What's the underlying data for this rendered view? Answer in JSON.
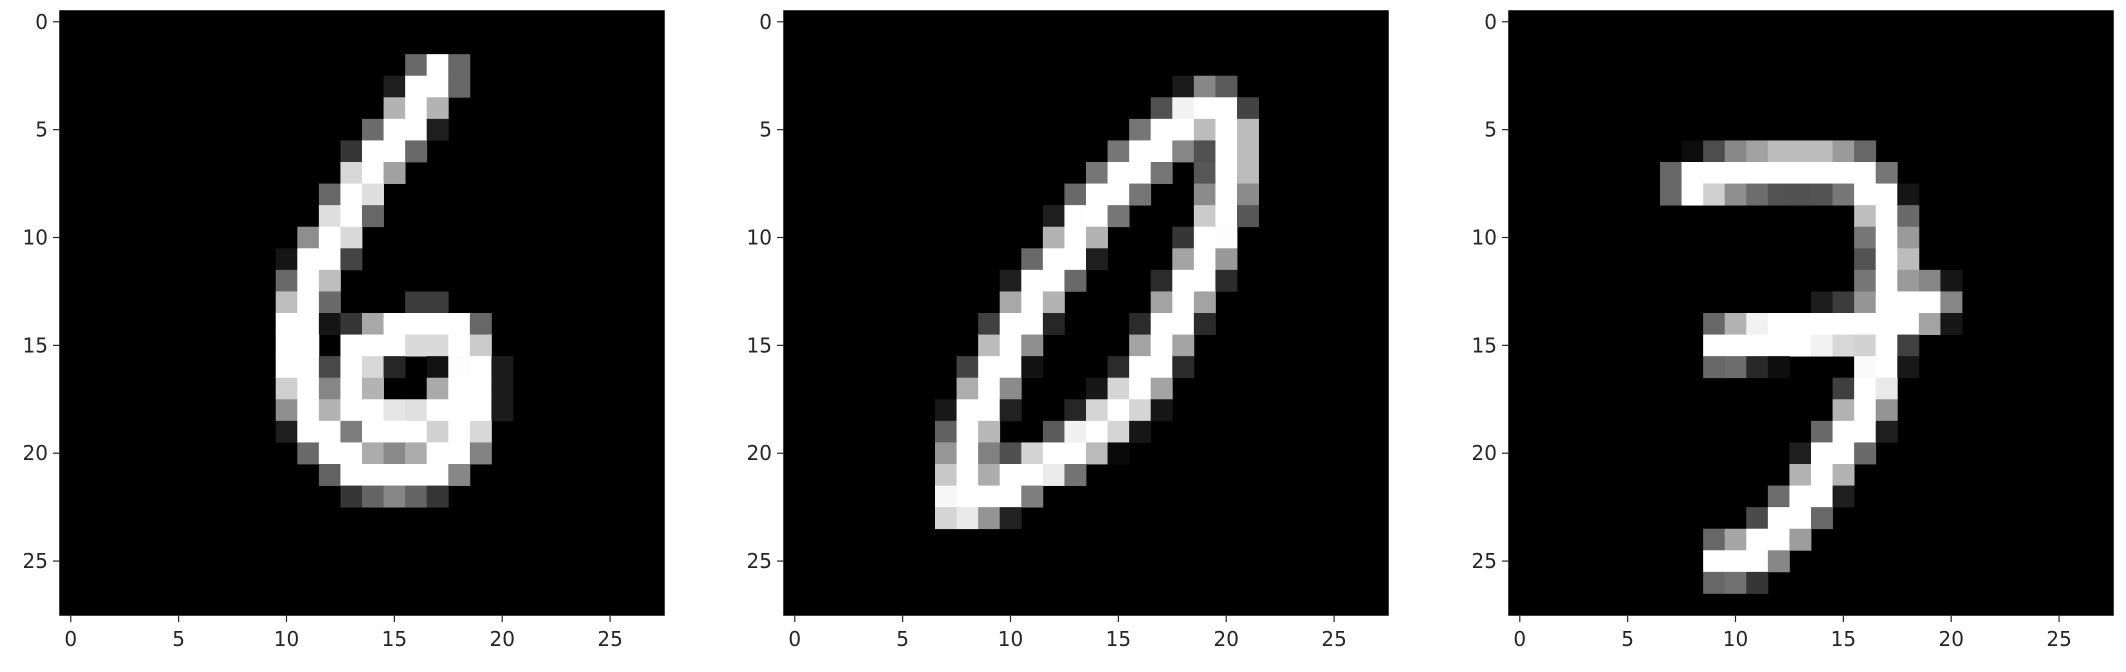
{
  "chart_data": [
    {
      "type": "heatmap",
      "title": "",
      "xlabel": "",
      "ylabel": "",
      "xlim": [
        -0.5,
        27.5
      ],
      "ylim": [
        27.5,
        -0.5
      ],
      "x_ticks": [
        0,
        5,
        10,
        15,
        20,
        25
      ],
      "y_ticks": [
        0,
        5,
        10,
        15,
        20,
        25
      ],
      "colormap": "gray",
      "grid": false,
      "strokes": [
        [
          [
            17,
            2.5
          ],
          [
            16,
            4
          ],
          [
            15,
            5.5
          ],
          [
            13.5,
            7.5
          ],
          [
            12.5,
            9.5
          ],
          [
            11.5,
            11
          ],
          [
            11,
            12.5
          ],
          [
            10.5,
            14
          ],
          [
            10.5,
            16
          ],
          [
            11,
            18
          ],
          [
            12,
            19.5
          ],
          [
            13.5,
            20.8
          ],
          [
            15,
            21
          ],
          [
            16.5,
            20.8
          ],
          [
            18,
            19.8
          ],
          [
            18.6,
            18
          ],
          [
            18.6,
            16
          ],
          [
            18,
            14.5
          ],
          [
            16.5,
            14.2
          ],
          [
            15,
            14.5
          ],
          [
            13.5,
            15.2
          ],
          [
            13,
            17
          ],
          [
            14,
            18.5
          ],
          [
            16,
            18.8
          ],
          [
            17.5,
            17.8
          ],
          [
            18.4,
            16.5
          ]
        ]
      ]
    },
    {
      "type": "heatmap",
      "title": "",
      "xlabel": "",
      "ylabel": "",
      "xlim": [
        -0.5,
        27.5
      ],
      "ylim": [
        27.5,
        -0.5
      ],
      "x_ticks": [
        0,
        5,
        10,
        15,
        20,
        25
      ],
      "y_ticks": [
        0,
        5,
        10,
        15,
        20,
        25
      ],
      "colormap": "gray",
      "grid": false,
      "strokes": [
        [
          [
            19,
            4
          ],
          [
            17,
            5.5
          ],
          [
            15.5,
            7
          ],
          [
            14,
            8.5
          ],
          [
            13,
            10
          ],
          [
            12,
            11.5
          ],
          [
            11,
            13
          ],
          [
            10,
            14.8
          ],
          [
            9,
            16.8
          ],
          [
            8.2,
            18.8
          ],
          [
            7.8,
            20.8
          ],
          [
            7.5,
            22.5
          ],
          [
            9,
            22
          ],
          [
            11,
            20.8
          ],
          [
            13,
            19.8
          ],
          [
            14.5,
            18.5
          ],
          [
            16,
            17
          ],
          [
            17,
            15
          ],
          [
            18,
            13
          ],
          [
            19,
            11
          ],
          [
            19.8,
            9
          ],
          [
            20.2,
            7
          ],
          [
            20.2,
            5
          ],
          [
            19.4,
            4
          ]
        ]
      ]
    },
    {
      "type": "heatmap",
      "title": "",
      "xlabel": "",
      "ylabel": "",
      "xlim": [
        -0.5,
        27.5
      ],
      "ylim": [
        27.5,
        -0.5
      ],
      "x_ticks": [
        0,
        5,
        10,
        15,
        20,
        25
      ],
      "y_ticks": [
        0,
        5,
        10,
        15,
        20,
        25
      ],
      "colormap": "gray",
      "grid": false,
      "strokes": [
        [
          [
            8,
            7.5
          ],
          [
            10,
            7
          ],
          [
            12,
            6.8
          ],
          [
            14,
            6.8
          ],
          [
            15.5,
            7
          ],
          [
            16.5,
            8
          ],
          [
            17,
            9.5
          ],
          [
            17.2,
            11
          ],
          [
            17,
            12.5
          ],
          [
            16.8,
            14.5
          ],
          [
            16.5,
            16.5
          ],
          [
            16,
            18
          ],
          [
            15,
            19.5
          ],
          [
            14,
            21
          ],
          [
            13,
            22.5
          ],
          [
            12,
            23.8
          ],
          [
            10.5,
            24.8
          ],
          [
            9.5,
            25
          ]
        ],
        [
          [
            9.5,
            15
          ],
          [
            11,
            14.6
          ],
          [
            13,
            14.5
          ],
          [
            15,
            14.3
          ],
          [
            16.5,
            14
          ],
          [
            18,
            13.5
          ],
          [
            19,
            13
          ]
        ]
      ]
    }
  ]
}
